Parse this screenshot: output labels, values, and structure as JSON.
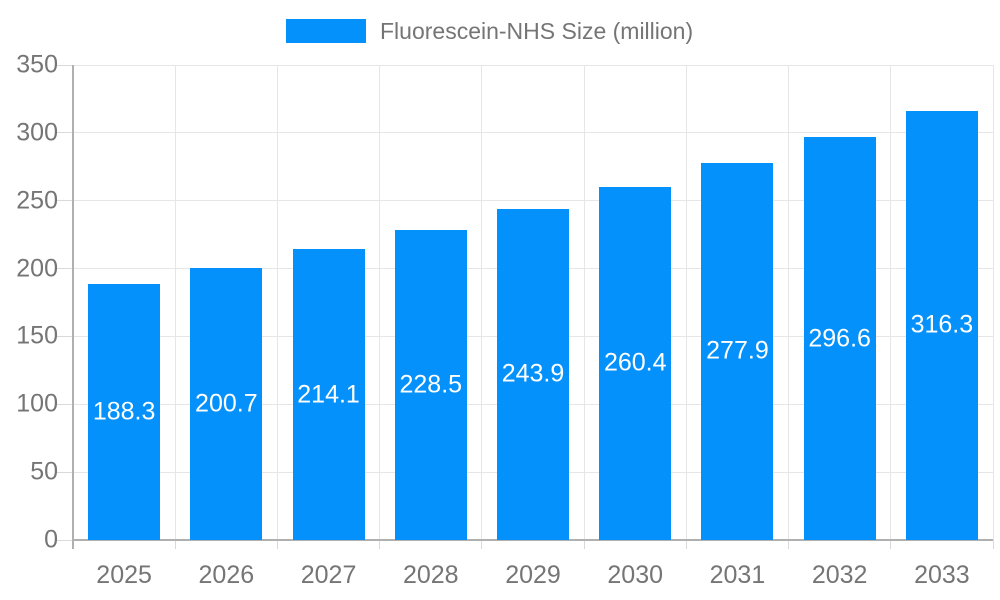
{
  "chart_data": {
    "type": "bar",
    "title": "",
    "legend": "Fluorescein-NHS Size (million)",
    "legend_position": "top",
    "categories": [
      "2025",
      "2026",
      "2027",
      "2028",
      "2029",
      "2030",
      "2031",
      "2032",
      "2033"
    ],
    "series": [
      {
        "name": "Fluorescein-NHS Size (million)",
        "values": [
          188.3,
          200.7,
          214.1,
          228.5,
          243.9,
          260.4,
          277.9,
          296.6,
          316.3
        ]
      }
    ],
    "value_decimals": 1,
    "xlabel": "",
    "ylabel": "",
    "ylim": [
      0,
      350
    ],
    "ytick_step": 50,
    "yticks": [
      0,
      50,
      100,
      150,
      200,
      250,
      300,
      350
    ],
    "grid": true,
    "colors": {
      "bar": "#0591FB",
      "axis_label": "#757575",
      "legend_label": "#757575",
      "gridline": "#E6E6E6",
      "axis_line": "#B0B0B0",
      "tick": "#D9D9D9",
      "value_label": "#FFFFFF",
      "background": "#FFFFFF"
    }
  }
}
